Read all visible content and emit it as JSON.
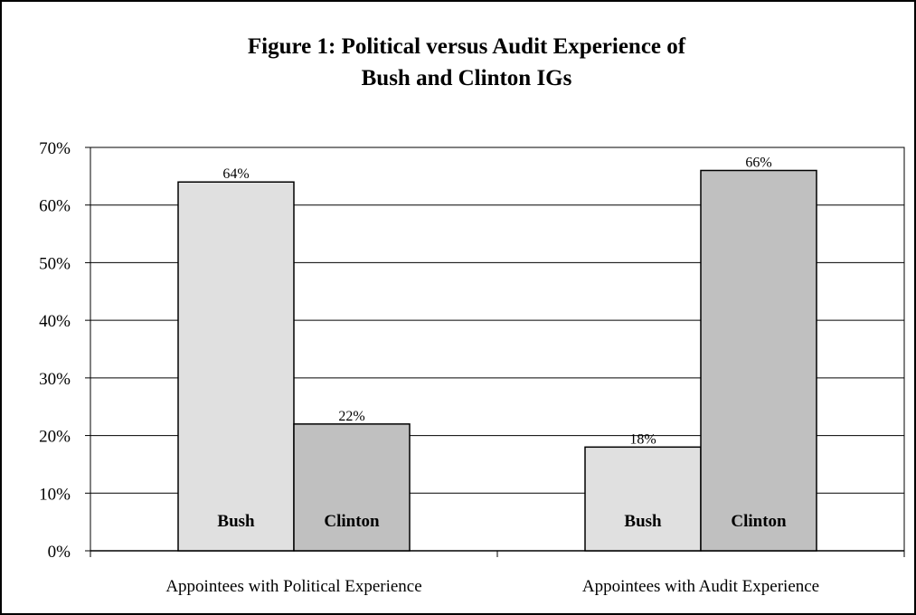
{
  "chart_data": {
    "type": "bar",
    "title_lines": [
      "Figure 1:  Political versus Audit Experience of",
      "Bush and Clinton IGs"
    ],
    "categories": [
      "Appointees with Political Experience",
      "Appointees with Audit Experience"
    ],
    "series": [
      {
        "name": "Bush",
        "values": [
          64,
          18
        ],
        "color": "#e0e0e0"
      },
      {
        "name": "Clinton",
        "values": [
          22,
          66
        ],
        "color": "#c0c0c0"
      }
    ],
    "data_labels": [
      [
        "64%",
        "18%"
      ],
      [
        "22%",
        "66%"
      ]
    ],
    "ylim": [
      0,
      70
    ],
    "yticks": [
      0,
      10,
      20,
      30,
      40,
      50,
      60,
      70
    ],
    "ytick_labels": [
      "0%",
      "10%",
      "20%",
      "30%",
      "40%",
      "50%",
      "60%",
      "70%"
    ],
    "xlabel": "",
    "ylabel": "",
    "grid": true,
    "legend": "none (series names printed inside bars)"
  }
}
